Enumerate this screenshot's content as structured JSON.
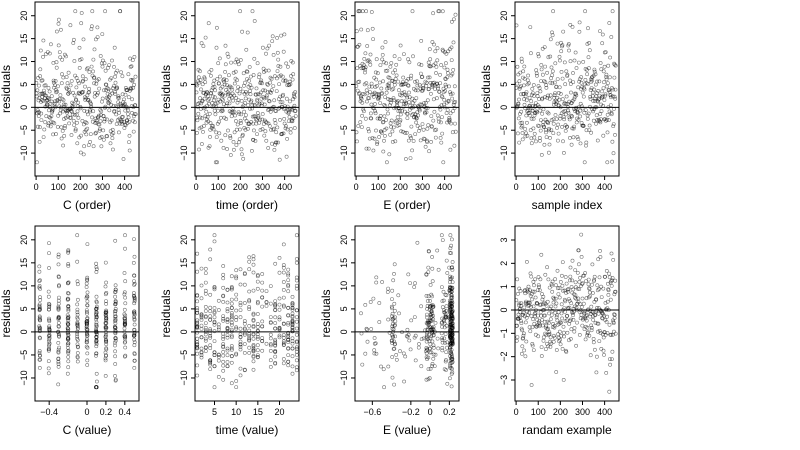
{
  "chart_data": [
    {
      "type": "scatter",
      "xlabel": "C (order)",
      "ylabel": "residuals",
      "xlim": [
        -5,
        465
      ],
      "ylim": [
        -15,
        23
      ],
      "xticks": [
        0,
        100,
        200,
        300,
        400
      ],
      "yticks": [
        -10,
        -5,
        0,
        5,
        10,
        15,
        20
      ],
      "reference_line_y": 0,
      "points": {
        "count": 450,
        "x_range": [
          1,
          450
        ],
        "y_range": [
          -12,
          21
        ],
        "pattern": "random scatter around zero, sequential sample order"
      }
    },
    {
      "type": "scatter",
      "xlabel": "time (order)",
      "ylabel": "residuals",
      "xlim": [
        -5,
        465
      ],
      "ylim": [
        -15,
        23
      ],
      "xticks": [
        0,
        100,
        200,
        300,
        400
      ],
      "yticks": [
        -10,
        -5,
        0,
        5,
        10,
        15,
        20
      ],
      "reference_line_y": 0,
      "points": {
        "count": 450,
        "x_range": [
          1,
          450
        ],
        "y_range": [
          -12,
          21
        ],
        "pattern": "random scatter around zero, sequential sample order"
      }
    },
    {
      "type": "scatter",
      "xlabel": "E (order)",
      "ylabel": "residuals",
      "xlim": [
        -5,
        465
      ],
      "ylim": [
        -15,
        23
      ],
      "xticks": [
        0,
        100,
        200,
        300,
        400
      ],
      "yticks": [
        -10,
        -5,
        0,
        5,
        10,
        15,
        20
      ],
      "reference_line_y": 0,
      "points": {
        "count": 450,
        "x_range": [
          1,
          450
        ],
        "y_range": [
          -12,
          21
        ],
        "pattern": "scatter with larger positive residuals near both ends"
      }
    },
    {
      "type": "scatter",
      "xlabel": "sample index",
      "ylabel": "residuals",
      "xlim": [
        -5,
        465
      ],
      "ylim": [
        -15,
        23
      ],
      "xticks": [
        0,
        100,
        200,
        300,
        400
      ],
      "yticks": [
        -10,
        -5,
        0,
        5,
        10,
        15,
        20
      ],
      "reference_line_y": 0,
      "points": {
        "count": 450,
        "x_range": [
          1,
          450
        ],
        "y_range": [
          -12,
          21
        ],
        "pattern": "random scatter around zero, slightly higher near 200"
      }
    },
    {
      "type": "scatter",
      "xlabel": "C (value)",
      "ylabel": "residuals",
      "xlim": [
        -0.55,
        0.55
      ],
      "ylim": [
        -15,
        23
      ],
      "xticks": [
        -0.4,
        0.0,
        0.2,
        0.4
      ],
      "yticks": [
        -10,
        -5,
        0,
        5,
        10,
        15,
        20
      ],
      "reference_line_y": 0,
      "points": {
        "count": 450,
        "x_range": [
          -0.5,
          0.5
        ],
        "y_range": [
          -12,
          21
        ],
        "pattern": "points clustered in vertical bands at discrete C values"
      }
    },
    {
      "type": "scatter",
      "xlabel": "time (value)",
      "ylabel": "residuals",
      "xlim": [
        0.5,
        24.5
      ],
      "ylim": [
        -15,
        23
      ],
      "xticks": [
        5,
        10,
        15,
        20
      ],
      "yticks": [
        -10,
        -5,
        0,
        5,
        10,
        15,
        20
      ],
      "reference_line_y": 0,
      "points": {
        "count": 450,
        "x_range": [
          1,
          24
        ],
        "y_range": [
          -12,
          21
        ],
        "pattern": "points in vertical bands at integer time values"
      }
    },
    {
      "type": "scatter",
      "xlabel": "E (value)",
      "ylabel": "residuals",
      "xlim": [
        -0.78,
        0.3
      ],
      "ylim": [
        -15,
        23
      ],
      "xticks": [
        -0.6,
        -0.2,
        0.0,
        0.2
      ],
      "yticks": [
        -10,
        -5,
        0,
        5,
        10,
        15,
        20
      ],
      "reference_line_y": 0,
      "points": {
        "count": 450,
        "x_range": [
          -0.72,
          0.25
        ],
        "y_range": [
          -12,
          21
        ],
        "pattern": "sparse on left, dense vertical band near E = 0.22"
      }
    },
    {
      "type": "scatter",
      "xlabel": "randam example",
      "ylabel": "residuals",
      "xlim": [
        -5,
        465
      ],
      "ylim": [
        -3.9,
        3.6
      ],
      "xticks": [
        0,
        100,
        200,
        300,
        400
      ],
      "yticks": [
        -3,
        -2,
        -1,
        0,
        1,
        2,
        3
      ],
      "reference_line_y": 0,
      "points": {
        "count": 450,
        "x_range": [
          1,
          450
        ],
        "y_range": [
          -3.5,
          3.4
        ],
        "pattern": "standard normal noise around zero"
      }
    }
  ]
}
